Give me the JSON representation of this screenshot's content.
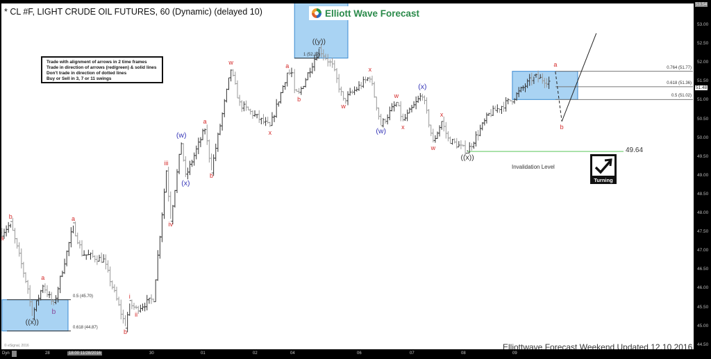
{
  "header": {
    "title": "* CL #F, LIGHT CRUDE OIL FUTURES, 60 (Dynamic) (delayed 10)"
  },
  "notes": [
    "Trade with alignment of arrows in 2 time frames",
    "Trade in direction of arrows (red/green) & solid lines",
    "Don't trade in direction of dotted lines",
    "Buy or Sell in 3, 7 or 11 swings"
  ],
  "logo": {
    "text": "Elliott Wave Forecast"
  },
  "footer": {
    "text": "Elliottwave Forecast Weekend  Updated 12.10.2016",
    "copyright": "© eSignal, 2016"
  },
  "turning": {
    "label": "Turning",
    "icon": "arrow-up-right-check-icon"
  },
  "colors": {
    "red_label": "#d42a2a",
    "blue_label": "#3636b8",
    "dark_label": "#333333",
    "purple_label": "#8a4a9a",
    "box_fill": "#a9d3f3",
    "box_border": "#3a8ad0",
    "invalidation": "#7ad07a"
  },
  "chart_data": {
    "type": "ohlc",
    "symbol": "CL #F",
    "interval": "60",
    "yaxis": {
      "ticks": [
        "53.00",
        "52.50",
        "52.00",
        "51.50",
        "51.00",
        "50.50",
        "50.00",
        "49.50",
        "49.00",
        "48.50",
        "48.00",
        "47.50",
        "47.00",
        "46.50",
        "46.00",
        "45.50",
        "45.00",
        "44.50"
      ],
      "top_value": "53.54",
      "last_price": "51.48",
      "ylim": [
        44.4,
        53.6
      ]
    },
    "xaxis": {
      "mode_label": "Dyn",
      "cursor_label": "18:00 11/28/2016",
      "ticks": [
        {
          "label": "28",
          "time": "11/28 00:00"
        },
        {
          "label": "30",
          "time": "11/30 00:00"
        },
        {
          "label": "01",
          "time": "12/01 00:00"
        },
        {
          "label": "02",
          "time": "12/02 00:00"
        },
        {
          "label": "04",
          "time": "12/04 18:00"
        },
        {
          "label": "06",
          "time": "12/06 00:00"
        },
        {
          "label": "07",
          "time": "12/07 00:00"
        },
        {
          "label": "08",
          "time": "12/08 00:00"
        },
        {
          "label": "09",
          "time": "12/09 00:00"
        }
      ]
    },
    "pivots": [
      {
        "time": "11/27 03:00",
        "price": 47.48,
        "label": "a",
        "color": "red",
        "pos": "below"
      },
      {
        "time": "11/27 07:00",
        "price": 47.72,
        "label": "b",
        "color": "red",
        "pos": "above"
      },
      {
        "time": "11/27 15:00",
        "price": 46.0
      },
      {
        "time": "11/27 17:00",
        "price": 45.27,
        "label": "((x))",
        "color": "dark",
        "pos": "below"
      },
      {
        "time": "11/27 22:00",
        "price": 46.1,
        "label": "a",
        "color": "red",
        "pos": "above"
      },
      {
        "time": "11/28 03:00",
        "price": 45.55,
        "label": "b",
        "color": "purple",
        "pos": "below"
      },
      {
        "time": "11/28 12:00",
        "price": 47.67,
        "label": "a",
        "color": "red",
        "pos": "above"
      },
      {
        "time": "11/28 16:00",
        "price": 46.93
      },
      {
        "time": "11/29 02:00",
        "price": 46.75
      },
      {
        "time": "11/29 12:00",
        "price": 45.0,
        "label": "b",
        "color": "red",
        "pos": "below"
      },
      {
        "time": "11/29 14:00",
        "price": 45.6,
        "label": "i",
        "color": "red",
        "pos": "above"
      },
      {
        "time": "11/29 17:00",
        "price": 45.45,
        "label": "ii",
        "color": "red",
        "pos": "below"
      },
      {
        "time": "11/30 01:00",
        "price": 45.73
      },
      {
        "time": "11/30 07:00",
        "price": 49.14,
        "label": "iii",
        "color": "red",
        "pos": "above"
      },
      {
        "time": "11/30 09:00",
        "price": 47.85,
        "label": "iv",
        "color": "red",
        "pos": "below"
      },
      {
        "time": "11/30 14:00",
        "price": 49.88,
        "label": "(w)",
        "color": "blue",
        "pos": "above"
      },
      {
        "time": "11/30 16:00",
        "price": 48.96,
        "label": "(x)",
        "color": "blue",
        "pos": "below"
      },
      {
        "time": "12/01 01:00",
        "price": 50.25,
        "label": "a",
        "color": "red",
        "pos": "above"
      },
      {
        "time": "12/01 04:00",
        "price": 49.14,
        "label": "b",
        "color": "red",
        "pos": "below"
      },
      {
        "time": "12/01 13:00",
        "price": 51.82,
        "label": "w",
        "color": "red",
        "pos": "above"
      },
      {
        "time": "12/01 17:00",
        "price": 50.9
      },
      {
        "time": "12/02 07:00",
        "price": 50.29,
        "label": "x",
        "color": "red",
        "pos": "below"
      },
      {
        "time": "12/02 15:00",
        "price": 51.73,
        "label": "a",
        "color": "red",
        "pos": "above"
      },
      {
        "time": "12/04 21:00",
        "price": 51.17,
        "label": "b",
        "color": "red",
        "pos": "below"
      },
      {
        "time": "12/05 06:00",
        "price": 52.37,
        "label": "((y))",
        "color": "dark",
        "pos": "above"
      },
      {
        "time": "12/05 12:00",
        "price": 51.91
      },
      {
        "time": "12/05 17:00",
        "price": 50.99,
        "label": "w",
        "color": "red",
        "pos": "below"
      },
      {
        "time": "12/06 05:00",
        "price": 51.63,
        "label": "x",
        "color": "red",
        "pos": "above"
      },
      {
        "time": "12/06 10:00",
        "price": 50.34,
        "label": "(w)",
        "color": "blue",
        "pos": "below"
      },
      {
        "time": "12/06 17:00",
        "price": 50.93,
        "label": "w",
        "color": "red",
        "pos": "above"
      },
      {
        "time": "12/06 20:00",
        "price": 50.44,
        "label": "x",
        "color": "red",
        "pos": "below"
      },
      {
        "time": "12/07 05:00",
        "price": 51.17,
        "label": "(x)",
        "color": "blue",
        "pos": "above"
      },
      {
        "time": "12/07 10:00",
        "price": 49.88,
        "label": "w",
        "color": "red",
        "pos": "below"
      },
      {
        "time": "12/07 14:00",
        "price": 50.44,
        "label": "x",
        "color": "red",
        "pos": "above"
      },
      {
        "time": "12/07 17:00",
        "price": 49.97
      },
      {
        "time": "12/08 02:00",
        "price": 49.64,
        "label": "((x))",
        "color": "dark",
        "pos": "below"
      },
      {
        "time": "12/08 12:00",
        "price": 50.62
      },
      {
        "time": "12/08 23:00",
        "price": 51.03
      },
      {
        "time": "12/09 09:00",
        "price": 51.63
      },
      {
        "time": "12/09 17:00",
        "price": 51.48
      }
    ],
    "projection": [
      {
        "time": "12/09 19:00",
        "price": 51.76,
        "label": "a",
        "color": "red",
        "pos": "above",
        "style": "dashed"
      },
      {
        "time": "12/09 22:00",
        "price": 50.44,
        "label": "b",
        "color": "red",
        "pos": "below",
        "style": "solid"
      },
      {
        "time": "12/10 14:00",
        "price": 52.78
      }
    ],
    "boxes": [
      {
        "name": "upper-target-box",
        "from": "12/04 19:00",
        "to": "12/05 19:00",
        "high": 53.6,
        "low": 52.12
      },
      {
        "name": "lower-target-box",
        "from": "11/27 03:00",
        "to": "11/28 09:00",
        "high": 45.7,
        "low": 44.87
      },
      {
        "name": "right-target-box",
        "from": "12/08 23:00",
        "to": "12/09 06:00",
        "high": 51.77,
        "low": 51.02
      }
    ],
    "box_times_right": {
      "from": "12/08 23:00"
    },
    "fib_levels": [
      {
        "label": "1 (52.12)",
        "price": 52.12,
        "group": "top"
      },
      {
        "label": "0.5 (45.70)",
        "price": 45.7,
        "group": "left"
      },
      {
        "label": "0.618 (44.87)",
        "price": 44.87,
        "group": "left"
      },
      {
        "label": "0.764 (51.77)",
        "price": 51.77,
        "group": "right"
      },
      {
        "label": "0.618 (51.36)",
        "price": 51.36,
        "group": "right"
      },
      {
        "label": "0.5 (51.02)",
        "price": 51.02,
        "group": "right"
      }
    ],
    "invalidation": {
      "price": 49.64,
      "value_label": "49.64",
      "label": "Invalidation Level"
    }
  }
}
